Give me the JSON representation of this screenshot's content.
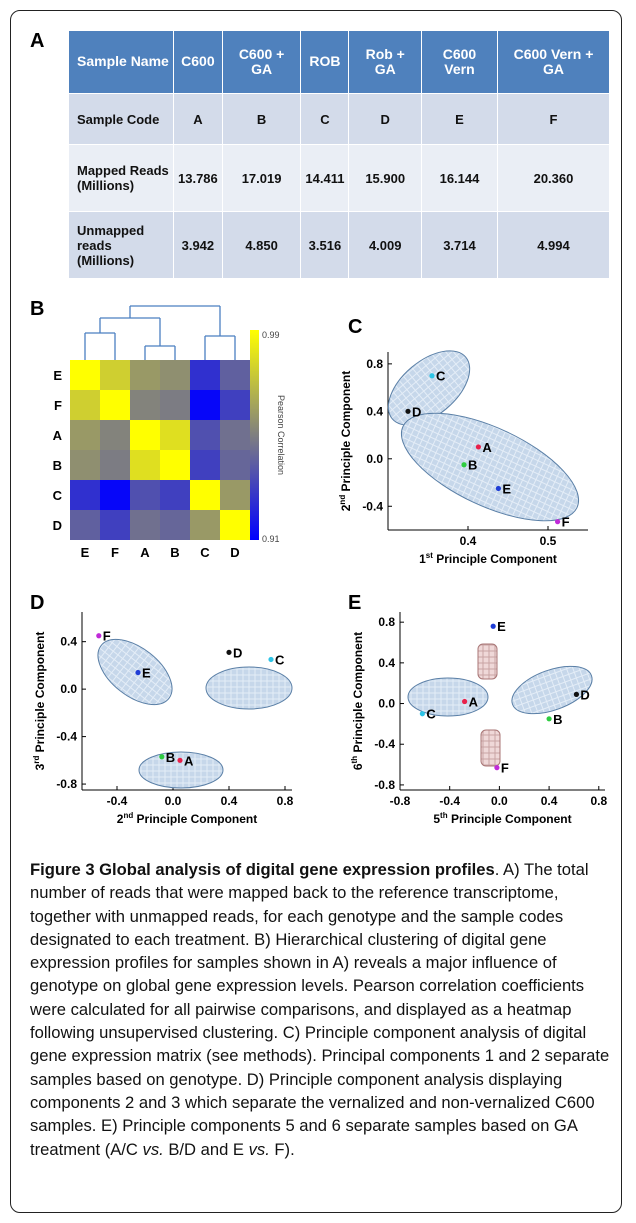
{
  "panels": {
    "a": "A",
    "b": "B",
    "c": "C",
    "d": "D",
    "e": "E"
  },
  "table": {
    "headers": [
      "Sample Name",
      "C600",
      "C600 + GA",
      "ROB",
      "Rob + GA",
      "C600 Vern",
      "C600 Vern + GA"
    ],
    "rows": [
      {
        "label": "Sample Code",
        "cells": [
          "A",
          "B",
          "C",
          "D",
          "E",
          "F"
        ]
      },
      {
        "label": "Mapped Reads (Millions)",
        "cells": [
          "13.786",
          "17.019",
          "14.411",
          "15.900",
          "16.144",
          "20.360"
        ]
      },
      {
        "label": "Unmapped reads (Millions)",
        "cells": [
          "3.942",
          "4.850",
          "3.516",
          "4.009",
          "3.714",
          "4.994"
        ]
      }
    ]
  },
  "colors": {
    "header_bg": "#4f81bd",
    "row_dark": "#d3dbea",
    "row_light": "#eaeef5",
    "heat_high": "#ffff00",
    "heat_low": "#0000ff",
    "pca_fill": "#c6d7ea",
    "pca_fill_alt": "#efd8d8"
  },
  "chart_data": [
    {
      "type": "heatmap",
      "panel": "B",
      "rows": [
        "E",
        "F",
        "A",
        "B",
        "C",
        "D"
      ],
      "columns": [
        "E",
        "F",
        "A",
        "B",
        "C",
        "D"
      ],
      "values": [
        [
          0.99,
          0.975,
          0.958,
          0.955,
          0.925,
          0.94
        ],
        [
          0.975,
          0.99,
          0.951,
          0.949,
          0.912,
          0.93
        ],
        [
          0.958,
          0.951,
          0.99,
          0.98,
          0.935,
          0.945
        ],
        [
          0.955,
          0.949,
          0.98,
          0.99,
          0.93,
          0.942
        ],
        [
          0.925,
          0.912,
          0.935,
          0.93,
          0.99,
          0.958
        ],
        [
          0.94,
          0.93,
          0.945,
          0.942,
          0.958,
          0.99
        ]
      ],
      "colorbar_label": "Pearson Correlation",
      "colorbar_range": [
        0.91,
        0.99
      ],
      "colorbar_ticks": [
        "0.99",
        "0.91"
      ],
      "dendrogram": "top"
    },
    {
      "type": "scatter",
      "panel": "C",
      "xlabel_main": "1",
      "xlabel_sup": "st",
      "xlabel_rest": " Principle Component",
      "ylabel_main": "2",
      "ylabel_sup": "nd",
      "ylabel_rest": " Principle Component",
      "xlim": [
        0.3,
        0.55
      ],
      "ylim": [
        -0.6,
        0.9
      ],
      "xticks": [
        0.4,
        0.5
      ],
      "yticks": [
        -0.4,
        0.0,
        0.4,
        0.8
      ],
      "xtick_labels": [
        "0.4",
        "0.5"
      ],
      "ytick_labels": [
        "-0.4",
        "0.0",
        "0.4",
        "0.8"
      ],
      "points": [
        {
          "label": "A",
          "x": 0.413,
          "y": 0.1,
          "color": "#e8204a"
        },
        {
          "label": "B",
          "x": 0.395,
          "y": -0.05,
          "color": "#2ecc40"
        },
        {
          "label": "C",
          "x": 0.355,
          "y": 0.7,
          "color": "#2ec4e6"
        },
        {
          "label": "D",
          "x": 0.325,
          "y": 0.4,
          "color": "#111111"
        },
        {
          "label": "E",
          "x": 0.438,
          "y": -0.25,
          "color": "#1f3dd6"
        },
        {
          "label": "F",
          "x": 0.512,
          "y": -0.53,
          "color": "#c02ad8"
        }
      ]
    },
    {
      "type": "scatter",
      "panel": "D",
      "xlabel_main": "2",
      "xlabel_sup": "nd",
      "xlabel_rest": " Principle Component",
      "ylabel_main": "3",
      "ylabel_sup": "rd",
      "ylabel_rest": " Principle Component",
      "xlim": [
        -0.65,
        0.85
      ],
      "ylim": [
        -0.85,
        0.65
      ],
      "xticks": [
        -0.4,
        0.0,
        0.4,
        0.8
      ],
      "yticks": [
        -0.8,
        -0.4,
        0.0,
        0.4
      ],
      "xtick_labels": [
        "-0.4",
        "0.0",
        "0.4",
        "0.8"
      ],
      "ytick_labels": [
        "-0.8",
        "-0.4",
        "0.0",
        "0.4"
      ],
      "points": [
        {
          "label": "A",
          "x": 0.05,
          "y": -0.6,
          "color": "#e8204a"
        },
        {
          "label": "B",
          "x": -0.08,
          "y": -0.57,
          "color": "#2ecc40"
        },
        {
          "label": "C",
          "x": 0.7,
          "y": 0.25,
          "color": "#2ec4e6"
        },
        {
          "label": "D",
          "x": 0.4,
          "y": 0.31,
          "color": "#111111"
        },
        {
          "label": "E",
          "x": -0.25,
          "y": 0.14,
          "color": "#1f3dd6"
        },
        {
          "label": "F",
          "x": -0.53,
          "y": 0.45,
          "color": "#c02ad8"
        }
      ]
    },
    {
      "type": "scatter",
      "panel": "E",
      "xlabel_main": "5",
      "xlabel_sup": "th",
      "xlabel_rest": " Principle Component",
      "ylabel_main": "6",
      "ylabel_sup": "th",
      "ylabel_rest": " Principle Component",
      "xlim": [
        -0.8,
        0.85
      ],
      "ylim": [
        -0.85,
        0.9
      ],
      "xticks": [
        -0.8,
        -0.4,
        0.0,
        0.4,
        0.8
      ],
      "yticks": [
        -0.8,
        -0.4,
        0.0,
        0.4,
        0.8
      ],
      "xtick_labels": [
        "-0.8",
        "-0.4",
        "0.0",
        "0.4",
        "0.8"
      ],
      "ytick_labels": [
        "-0.8",
        "-0.4",
        "0.0",
        "0.4",
        "0.8"
      ],
      "points": [
        {
          "label": "A",
          "x": -0.28,
          "y": 0.02,
          "color": "#e8204a"
        },
        {
          "label": "B",
          "x": 0.4,
          "y": -0.15,
          "color": "#2ecc40"
        },
        {
          "label": "C",
          "x": -0.62,
          "y": -0.1,
          "color": "#2ec4e6"
        },
        {
          "label": "D",
          "x": 0.62,
          "y": 0.09,
          "color": "#111111"
        },
        {
          "label": "E",
          "x": -0.05,
          "y": 0.76,
          "color": "#1f3dd6"
        },
        {
          "label": "F",
          "x": -0.02,
          "y": -0.63,
          "color": "#c02ad8"
        }
      ]
    }
  ],
  "caption": {
    "title": "Figure 3 Global analysis of digital gene expression profiles",
    "body_1": ". A) The total number of reads that were mapped back to the reference transcriptome, together with unmapped reads, for each genotype and the sample codes designated to each treatment. B) Hierarchical clustering of digital gene expression profiles for samples shown in A) reveals a major influence of genotype on global gene expression levels. Pearson correlation coefficients were calculated for all pairwise comparisons, and displayed as a heatmap following unsupervised clustering. C) Principle component analysis of digital gene expression matrix (see methods). Principal components 1 and 2 separate samples based on genotype. D) Principle component analysis displaying components 2 and 3 which separate the vernalized and non-vernalized C600 samples. E) Principle components 5 and 6 separate samples based on GA treatment (A/C ",
    "vs1": "vs.",
    "body_2": " B/D and E ",
    "vs2": "vs.",
    "body_3": " F)."
  }
}
